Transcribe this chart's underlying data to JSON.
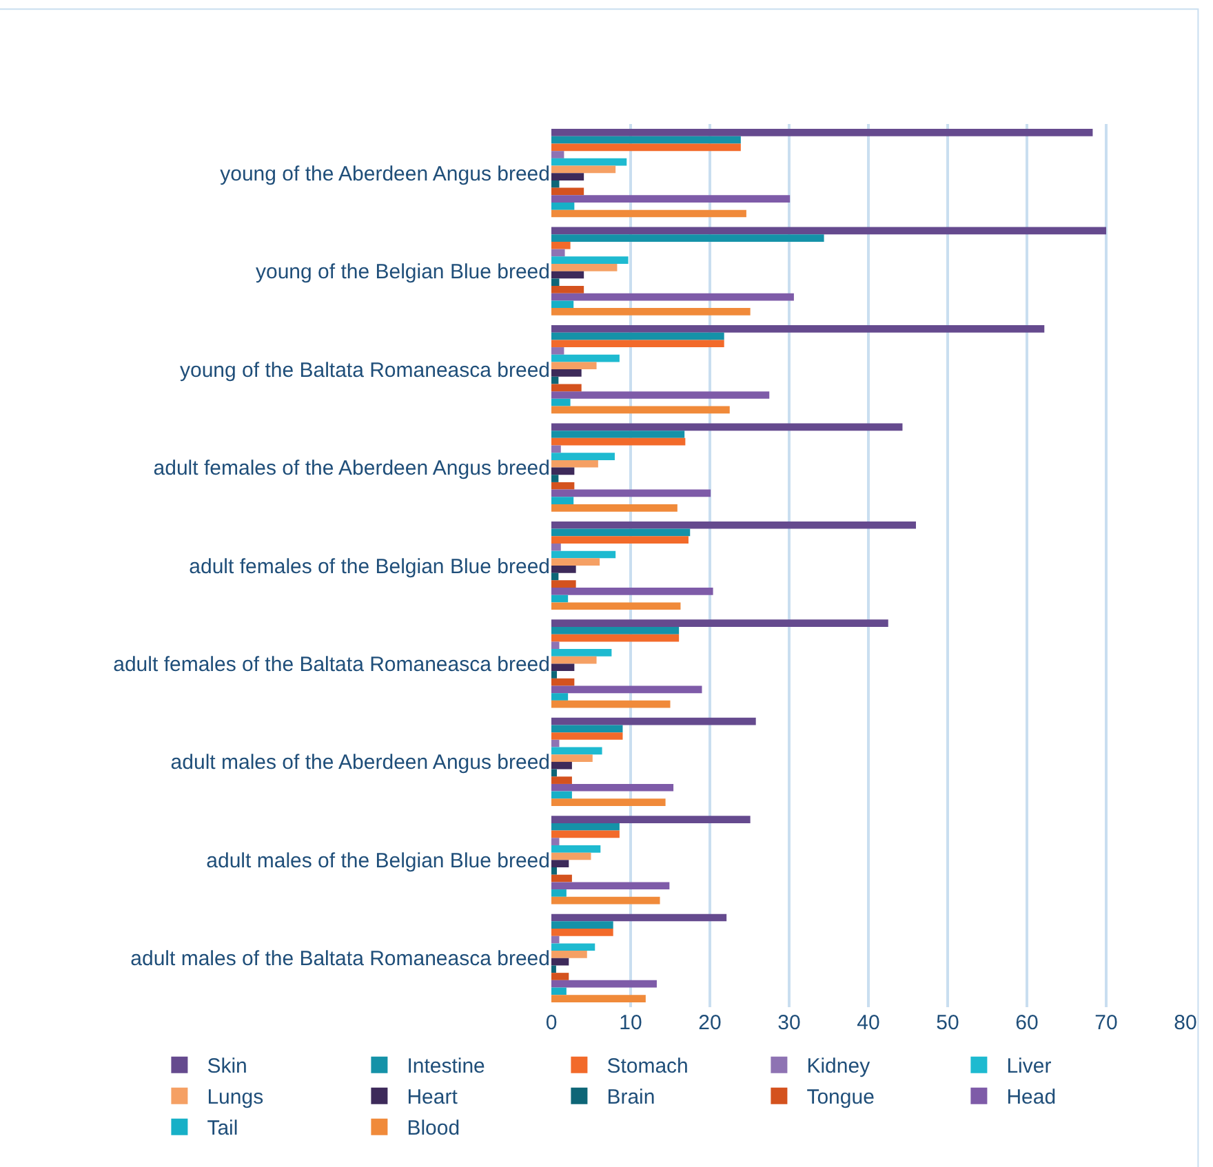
{
  "chart_data": {
    "type": "bar",
    "orientation": "horizontal",
    "categories": [
      "young of the Aberdeen Angus breed",
      "young of the Belgian Blue breed",
      "young of the Baltata Romaneasca breed",
      "adult females of the Aberdeen Angus breed",
      "adult females of the Belgian Blue breed",
      "adult females of the Baltata Romaneasca breed",
      "adult males of the Aberdeen Angus breed",
      "adult males of the Belgian Blue breed",
      "adult males of the Baltata Romaneasca breed"
    ],
    "series": [
      {
        "name": "Skin",
        "color": "#654a8e",
        "values": [
          68.3,
          70.0,
          62.2,
          44.3,
          46.0,
          42.5,
          25.8,
          25.1,
          22.1
        ]
      },
      {
        "name": "Intestine",
        "color": "#1592a8",
        "values": [
          23.9,
          34.4,
          21.8,
          16.8,
          17.5,
          16.1,
          9.0,
          8.6,
          7.8
        ]
      },
      {
        "name": "Stomach",
        "color": "#f26a2a",
        "values": [
          23.9,
          2.4,
          21.8,
          16.9,
          17.3,
          16.1,
          9.0,
          8.6,
          7.8
        ]
      },
      {
        "name": "Kidney",
        "color": "#8e73b3",
        "values": [
          1.6,
          1.7,
          1.6,
          1.2,
          1.2,
          1.0,
          1.0,
          1.0,
          1.0
        ]
      },
      {
        "name": "Liver",
        "color": "#1ebad0",
        "values": [
          9.5,
          9.7,
          8.6,
          8.0,
          8.1,
          7.6,
          6.4,
          6.2,
          5.5
        ]
      },
      {
        "name": "Lungs",
        "color": "#f5a064",
        "values": [
          8.1,
          8.3,
          5.7,
          5.9,
          6.1,
          5.7,
          5.2,
          5.0,
          4.5
        ]
      },
      {
        "name": "Heart",
        "color": "#3d2a5a",
        "values": [
          4.1,
          4.1,
          3.8,
          2.9,
          3.1,
          2.9,
          2.6,
          2.2,
          2.2
        ]
      },
      {
        "name": "Brain",
        "color": "#0e6677",
        "values": [
          1.0,
          1.0,
          0.9,
          0.9,
          0.9,
          0.7,
          0.7,
          0.7,
          0.6
        ]
      },
      {
        "name": "Tongue",
        "color": "#d4521e",
        "values": [
          4.1,
          4.1,
          3.8,
          2.9,
          3.1,
          2.9,
          2.6,
          2.6,
          2.2
        ]
      },
      {
        "name": "Head",
        "color": "#7e5ba8",
        "values": [
          30.1,
          30.6,
          27.5,
          20.1,
          20.4,
          19.0,
          15.4,
          14.9,
          13.3
        ]
      },
      {
        "name": "Tail",
        "color": "#17b0c7",
        "values": [
          2.9,
          2.8,
          2.4,
          2.8,
          2.1,
          2.1,
          2.6,
          1.9,
          1.9
        ]
      },
      {
        "name": "Blood",
        "color": "#f08a3a",
        "values": [
          24.6,
          25.1,
          22.5,
          15.9,
          16.3,
          15.0,
          14.4,
          13.7,
          11.9
        ]
      }
    ],
    "xlim": [
      0,
      80
    ],
    "xticks": [
      0,
      10,
      20,
      30,
      40,
      50,
      60,
      70,
      80
    ],
    "grid": "x",
    "legend": "bottom"
  }
}
